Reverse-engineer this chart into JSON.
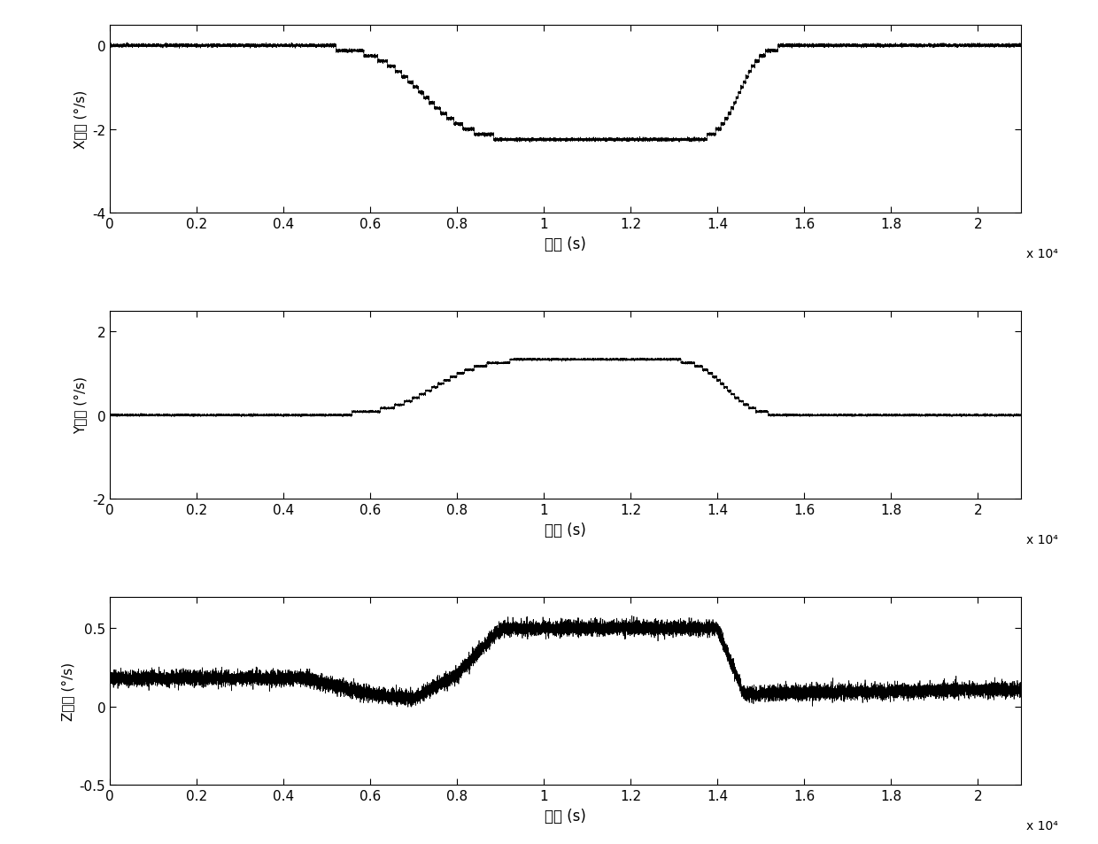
{
  "xlim": [
    0,
    21000
  ],
  "xticks": [
    0,
    2000,
    4000,
    6000,
    8000,
    10000,
    12000,
    14000,
    16000,
    18000,
    20000
  ],
  "xticklabels": [
    "0",
    "0.2",
    "0.4",
    "0.6",
    "0.8",
    "1",
    "1.2",
    "1.4",
    "1.6",
    "1.8",
    "2"
  ],
  "xlabel": "时间 (s)",
  "scale_label": "x 10⁴",
  "plot1_ylim": [
    -4,
    0.5
  ],
  "plot1_yticks": [
    0,
    -2,
    -4
  ],
  "plot1_yticklabels": [
    "0",
    "-2",
    "-4"
  ],
  "plot1_ylabel": "X陀螺 (°/s)",
  "plot2_ylim": [
    -2,
    2.5
  ],
  "plot2_yticks": [
    2,
    0,
    -2
  ],
  "plot2_yticklabels": [
    "2",
    "0",
    "-2"
  ],
  "plot2_ylabel": "Y陀螺 (°/s)",
  "plot3_ylim": [
    -0.5,
    0.7
  ],
  "plot3_yticks": [
    0.5,
    0,
    -0.5
  ],
  "plot3_yticklabels": [
    "0.5",
    "0",
    "-0.5"
  ],
  "plot3_ylabel": "Z陀螺 (°/s)",
  "line_color": "#000000",
  "noise_amp1": 0.018,
  "noise_amp2": 0.012,
  "noise_amp3": 0.022
}
